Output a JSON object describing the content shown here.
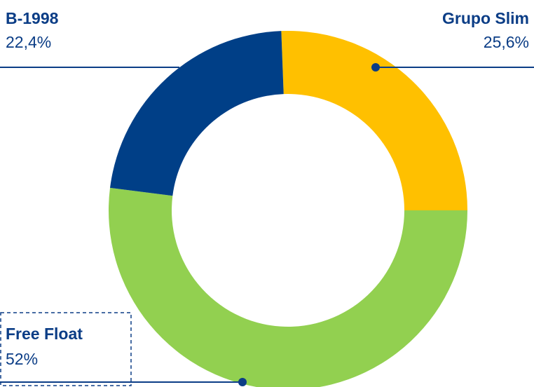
{
  "chart_data": {
    "type": "donut",
    "categories": [
      "Grupo Slim",
      "Free Float",
      "B-1998"
    ],
    "values": [
      25.6,
      52,
      22.4
    ],
    "value_labels": [
      "25,6%",
      "52%",
      "22,4%"
    ],
    "colors": [
      "#FFC000",
      "#92D050",
      "#003F87"
    ]
  }
}
